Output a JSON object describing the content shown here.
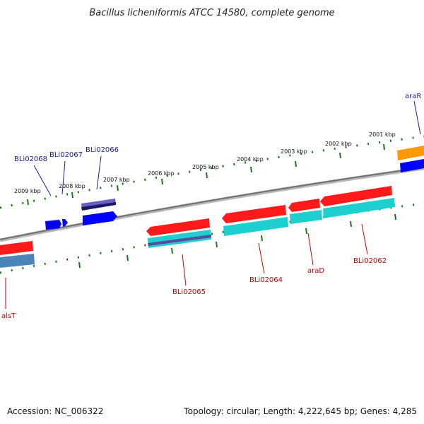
{
  "title": "Bacillus licheniformis ATCC 14580, complete genome",
  "footer": {
    "accession": "Accession: NC_006322",
    "summary": "Topology: circular; Length: 4,222,645 bp; Genes: 4,285"
  },
  "ticks": [
    "2009 kbp",
    "2008 kbp",
    "2007 kbp",
    "2006 kbp",
    "2005 kbp",
    "2004 kbp",
    "2003 kbp",
    "2002 kbp",
    "2001 kbp"
  ],
  "genes_forward": [
    "BLi02068",
    "BLi02067",
    "BLi02066",
    "araR"
  ],
  "genes_reverse": [
    "alsT",
    "BLi02065",
    "BLi02064",
    "araD",
    "BLi02062"
  ],
  "colors": {
    "forward_label": "#1a1aa8",
    "reverse_label": "#cc0000",
    "backbone": "#808080",
    "tick_dots": "#1a7a1a",
    "gene_red": "#ff1a1a",
    "gene_blue": "#0000ff",
    "gene_cyan": "#1ecfd0",
    "gene_purple": "#7b6fcf",
    "gene_steel": "#4a84b8",
    "gene_orange": "#ff9900"
  }
}
